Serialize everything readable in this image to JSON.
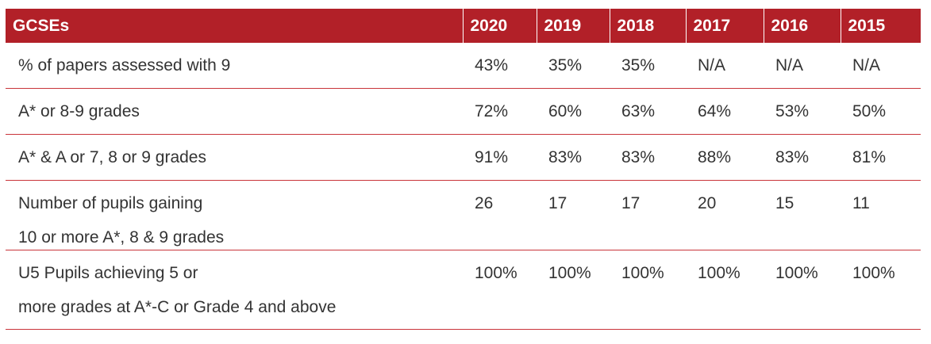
{
  "table": {
    "headers": [
      "GCSEs",
      "2020",
      "2019",
      "2018",
      "2017",
      "2016",
      "2015"
    ],
    "rows": [
      {
        "label_lines": [
          "% of papers assessed with 9"
        ],
        "values": [
          "43%",
          "35%",
          "35%",
          "N/A",
          "N/A",
          "N/A"
        ]
      },
      {
        "label_lines": [
          "A* or 8-9 grades"
        ],
        "values": [
          "72%",
          "60%",
          "63%",
          "64%",
          "53%",
          "50%"
        ]
      },
      {
        "label_lines": [
          "A* & A or 7, 8 or 9 grades"
        ],
        "values": [
          "91%",
          "83%",
          "83%",
          "88%",
          "83%",
          "81%"
        ]
      },
      {
        "label_lines": [
          "Number of pupils gaining",
          "10 or more A*, 8 & 9 grades"
        ],
        "values": [
          "26",
          "17",
          "17",
          "20",
          "15",
          "11"
        ]
      },
      {
        "label_lines": [
          "U5 Pupils achieving 5 or",
          "more grades at A*-C or Grade 4 and above"
        ],
        "values": [
          "100%",
          "100%",
          "100%",
          "100%",
          "100%",
          "100%"
        ]
      }
    ]
  },
  "colors": {
    "header_bg": "#b22028",
    "row_divider": "#c9343a",
    "text": "#333333"
  }
}
